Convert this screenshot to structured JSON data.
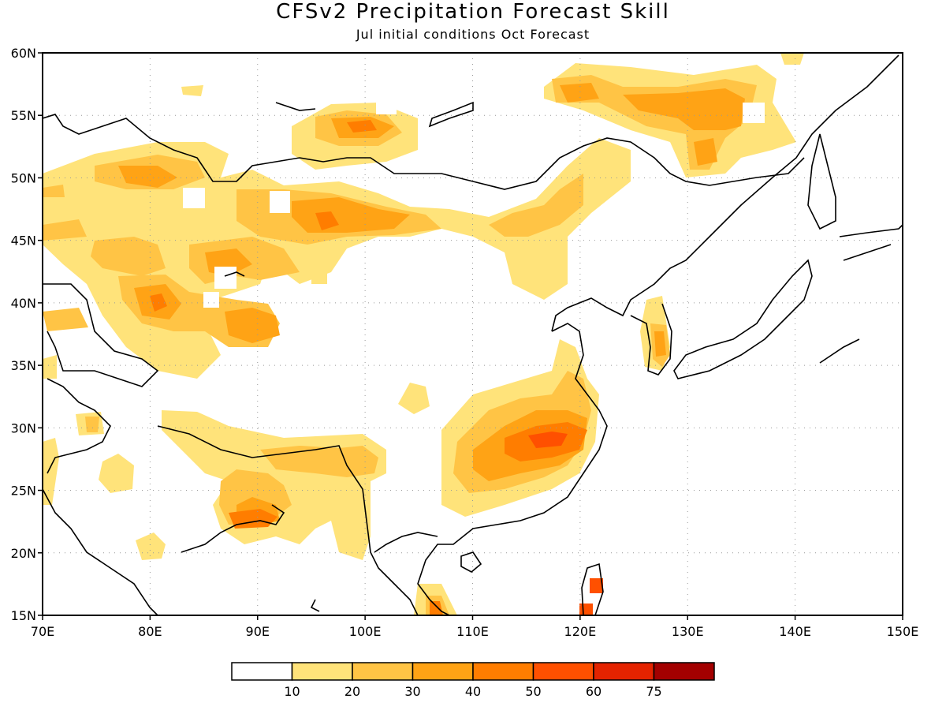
{
  "title": "CFSv2 Precipitation Forecast Skill",
  "subtitle": "Jul initial conditions  Oct Forecast",
  "axes": {
    "lon_labels": [
      "70E",
      "80E",
      "90E",
      "100E",
      "110E",
      "120E",
      "130E",
      "140E",
      "150E"
    ],
    "lat_labels": [
      "15N",
      "20N",
      "25N",
      "30N",
      "35N",
      "40N",
      "45N",
      "50N",
      "55N",
      "60N"
    ],
    "lon_range": [
      70,
      150
    ],
    "lat_range": [
      15,
      60
    ]
  },
  "colorbar": {
    "labels": [
      "10",
      "20",
      "30",
      "40",
      "50",
      "60",
      "75"
    ],
    "colors": [
      "#ffffff",
      "#ffe37a",
      "#ffc445",
      "#ffa315",
      "#ff7d00",
      "#ff5000",
      "#e42300",
      "#a30000"
    ]
  }
}
